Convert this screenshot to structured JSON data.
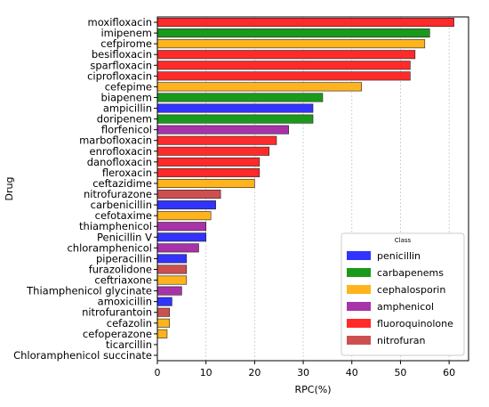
{
  "chart_data": {
    "type": "bar",
    "orientation": "horizontal",
    "xlabel": "RPC(%)",
    "ylabel": "Drug",
    "xlim": [
      0,
      64
    ],
    "xticks": [
      0,
      10,
      20,
      30,
      40,
      50,
      60
    ],
    "grid": "vertical-dashed",
    "legend": {
      "title": "Class",
      "position": "lower-right",
      "entries": [
        {
          "name": "penicillin",
          "color": "#3333ff"
        },
        {
          "name": "carbapenems",
          "color": "#1a9a1a"
        },
        {
          "name": "cephalosporin",
          "color": "#ffb41e"
        },
        {
          "name": "amphenicol",
          "color": "#a832a8"
        },
        {
          "name": "fluoroquinolone",
          "color": "#ff2a2a"
        },
        {
          "name": "nitrofuran",
          "color": "#cd5050"
        }
      ]
    },
    "bars": [
      {
        "drug": "moxifloxacin",
        "value": 61,
        "class": "fluoroquinolone"
      },
      {
        "drug": "imipenem",
        "value": 56,
        "class": "carbapenems"
      },
      {
        "drug": "cefpirome",
        "value": 55,
        "class": "cephalosporin"
      },
      {
        "drug": "besifloxacin",
        "value": 53,
        "class": "fluoroquinolone"
      },
      {
        "drug": "sparfloxacin",
        "value": 52,
        "class": "fluoroquinolone"
      },
      {
        "drug": "ciprofloxacin",
        "value": 52,
        "class": "fluoroquinolone"
      },
      {
        "drug": "cefepime",
        "value": 42,
        "class": "cephalosporin"
      },
      {
        "drug": "biapenem",
        "value": 34,
        "class": "carbapenems"
      },
      {
        "drug": "ampicillin",
        "value": 32,
        "class": "penicillin"
      },
      {
        "drug": "doripenem",
        "value": 32,
        "class": "carbapenems"
      },
      {
        "drug": "florfenicol",
        "value": 27,
        "class": "amphenicol"
      },
      {
        "drug": "marbofloxacin",
        "value": 24.5,
        "class": "fluoroquinolone"
      },
      {
        "drug": "enrofloxacin",
        "value": 23,
        "class": "fluoroquinolone"
      },
      {
        "drug": "danofloxacin",
        "value": 21,
        "class": "fluoroquinolone"
      },
      {
        "drug": "fleroxacin",
        "value": 21,
        "class": "fluoroquinolone"
      },
      {
        "drug": "ceftazidime",
        "value": 20,
        "class": "cephalosporin"
      },
      {
        "drug": "nitrofurazone",
        "value": 13,
        "class": "nitrofuran"
      },
      {
        "drug": "carbenicillin",
        "value": 12,
        "class": "penicillin"
      },
      {
        "drug": "cefotaxime",
        "value": 11,
        "class": "cephalosporin"
      },
      {
        "drug": "thiamphenicol",
        "value": 10,
        "class": "amphenicol"
      },
      {
        "drug": "Penicillin V",
        "value": 10,
        "class": "penicillin"
      },
      {
        "drug": "chloramphenicol",
        "value": 8.5,
        "class": "amphenicol"
      },
      {
        "drug": "piperacillin",
        "value": 6,
        "class": "penicillin"
      },
      {
        "drug": "furazolidone",
        "value": 6,
        "class": "nitrofuran"
      },
      {
        "drug": "ceftriaxone",
        "value": 6,
        "class": "cephalosporin"
      },
      {
        "drug": "Thiamphenicol glycinate",
        "value": 5,
        "class": "amphenicol"
      },
      {
        "drug": "amoxicillin",
        "value": 3,
        "class": "penicillin"
      },
      {
        "drug": "nitrofurantoin",
        "value": 2.5,
        "class": "nitrofuran"
      },
      {
        "drug": "cefazolin",
        "value": 2.5,
        "class": "cephalosporin"
      },
      {
        "drug": "cefoperazone",
        "value": 2,
        "class": "cephalosporin"
      },
      {
        "drug": "ticarcillin",
        "value": 0,
        "class": "penicillin"
      },
      {
        "drug": "Chloramphenicol succinate",
        "value": 0,
        "class": "amphenicol"
      }
    ]
  }
}
